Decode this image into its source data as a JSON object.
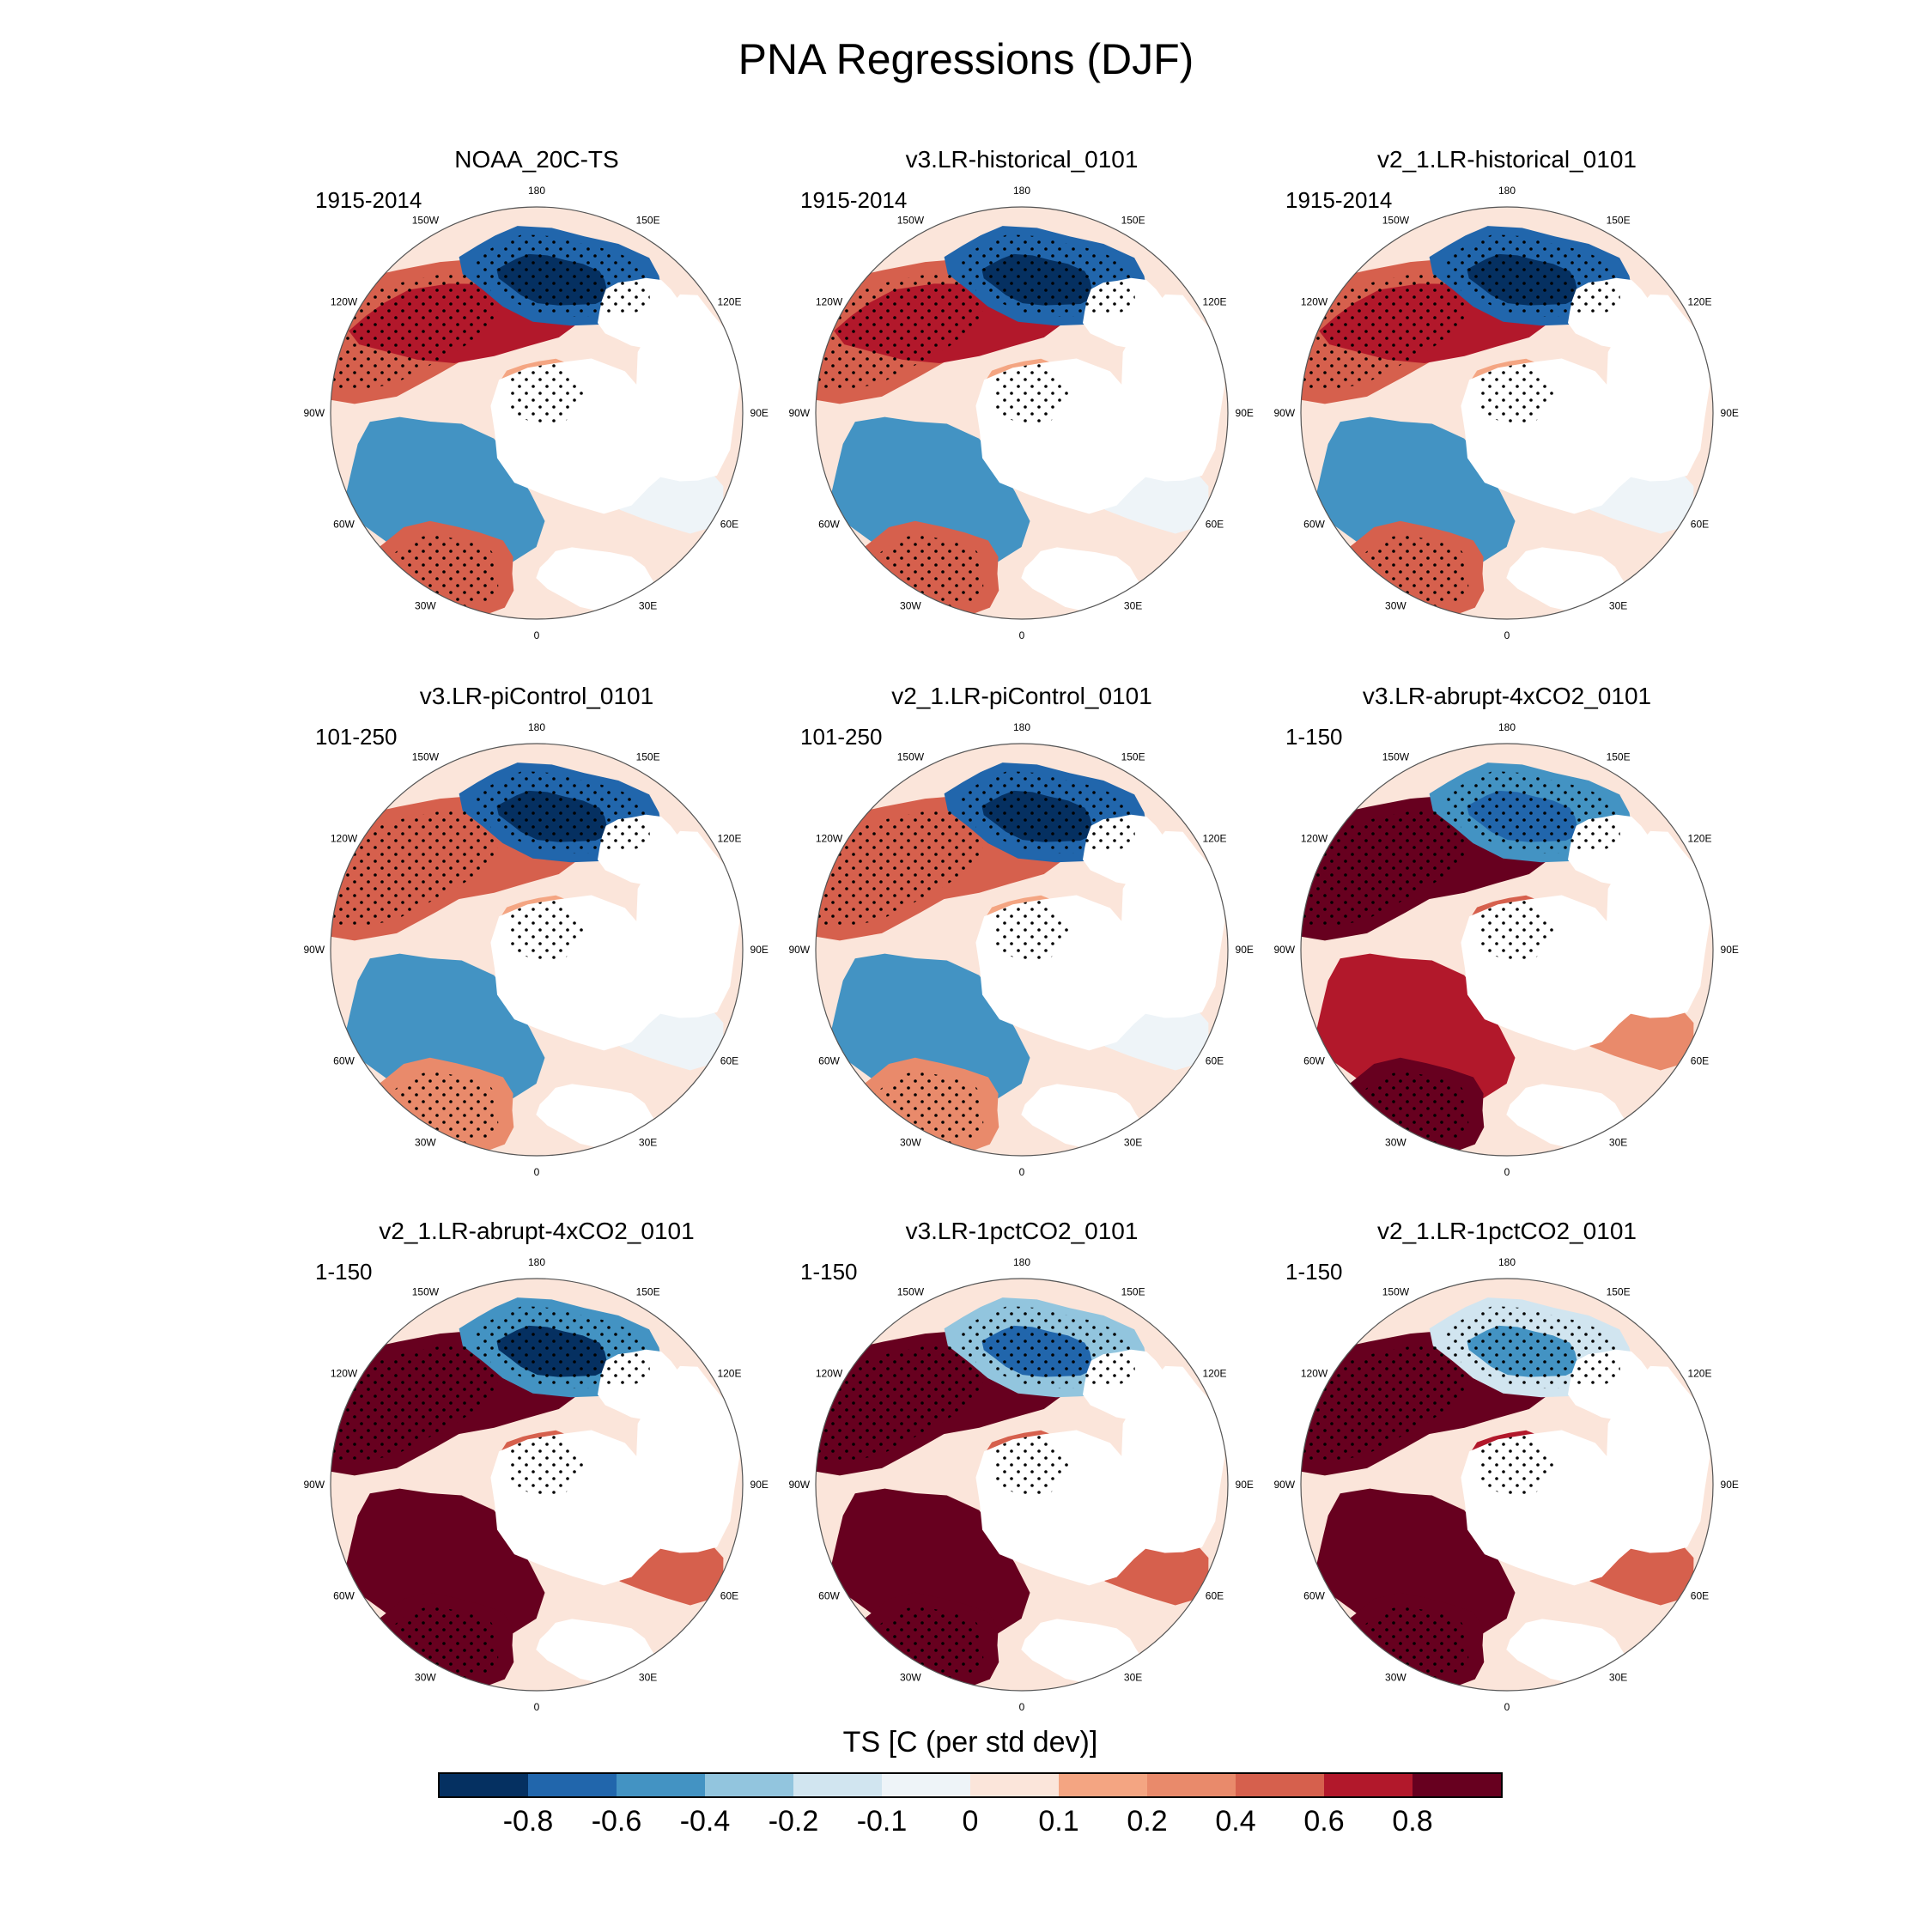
{
  "title": "PNA Regressions (DJF)",
  "lon_labels": {
    "top": "180",
    "tl": "150W",
    "tr": "150E",
    "ul": "120W",
    "ur": "120E",
    "ml": "90W",
    "mr": "90E",
    "ll": "60W",
    "lr": "60E",
    "bl": "30W",
    "br": "30E",
    "bottom": "0"
  },
  "panels": [
    {
      "title": "NOAA_20C-TS",
      "period": "1915-2014",
      "warmth": 0.15,
      "cold": 0.85
    },
    {
      "title": "v3.LR-historical_0101",
      "period": "1915-2014",
      "warmth": 0.2,
      "cold": 0.85
    },
    {
      "title": "v2_1.LR-historical_0101",
      "period": "1915-2014",
      "warmth": 0.2,
      "cold": 0.8
    },
    {
      "title": "v3.LR-piControl_0101",
      "period": "101-250",
      "warmth": 0.1,
      "cold": 0.85
    },
    {
      "title": "v2_1.LR-piControl_0101",
      "period": "101-250",
      "warmth": 0.1,
      "cold": 0.8
    },
    {
      "title": "v3.LR-abrupt-4xCO2_0101",
      "period": "1-150",
      "warmth": 0.55,
      "cold": 0.55
    },
    {
      "title": "v2_1.LR-abrupt-4xCO2_0101",
      "period": "1-150",
      "warmth": 0.75,
      "cold": 0.6
    },
    {
      "title": "v3.LR-1pctCO2_0101",
      "period": "1-150",
      "warmth": 0.7,
      "cold": 0.4
    },
    {
      "title": "v2_1.LR-1pctCO2_0101",
      "period": "1-150",
      "warmth": 0.9,
      "cold": 0.15
    }
  ],
  "colorbar": {
    "title": "TS [C (per std dev)]",
    "colors": [
      "#053061",
      "#2166ac",
      "#4393c3",
      "#92c5de",
      "#d1e5f0",
      "#eef4f8",
      "#fbe5da",
      "#f4a582",
      "#e98a6b",
      "#d6604d",
      "#b2182b",
      "#67001f"
    ],
    "labels": [
      "-0.8",
      "-0.6",
      "-0.4",
      "-0.2",
      "-0.1",
      "0",
      "0.1",
      "0.2",
      "0.4",
      "0.6",
      "0.8"
    ]
  }
}
